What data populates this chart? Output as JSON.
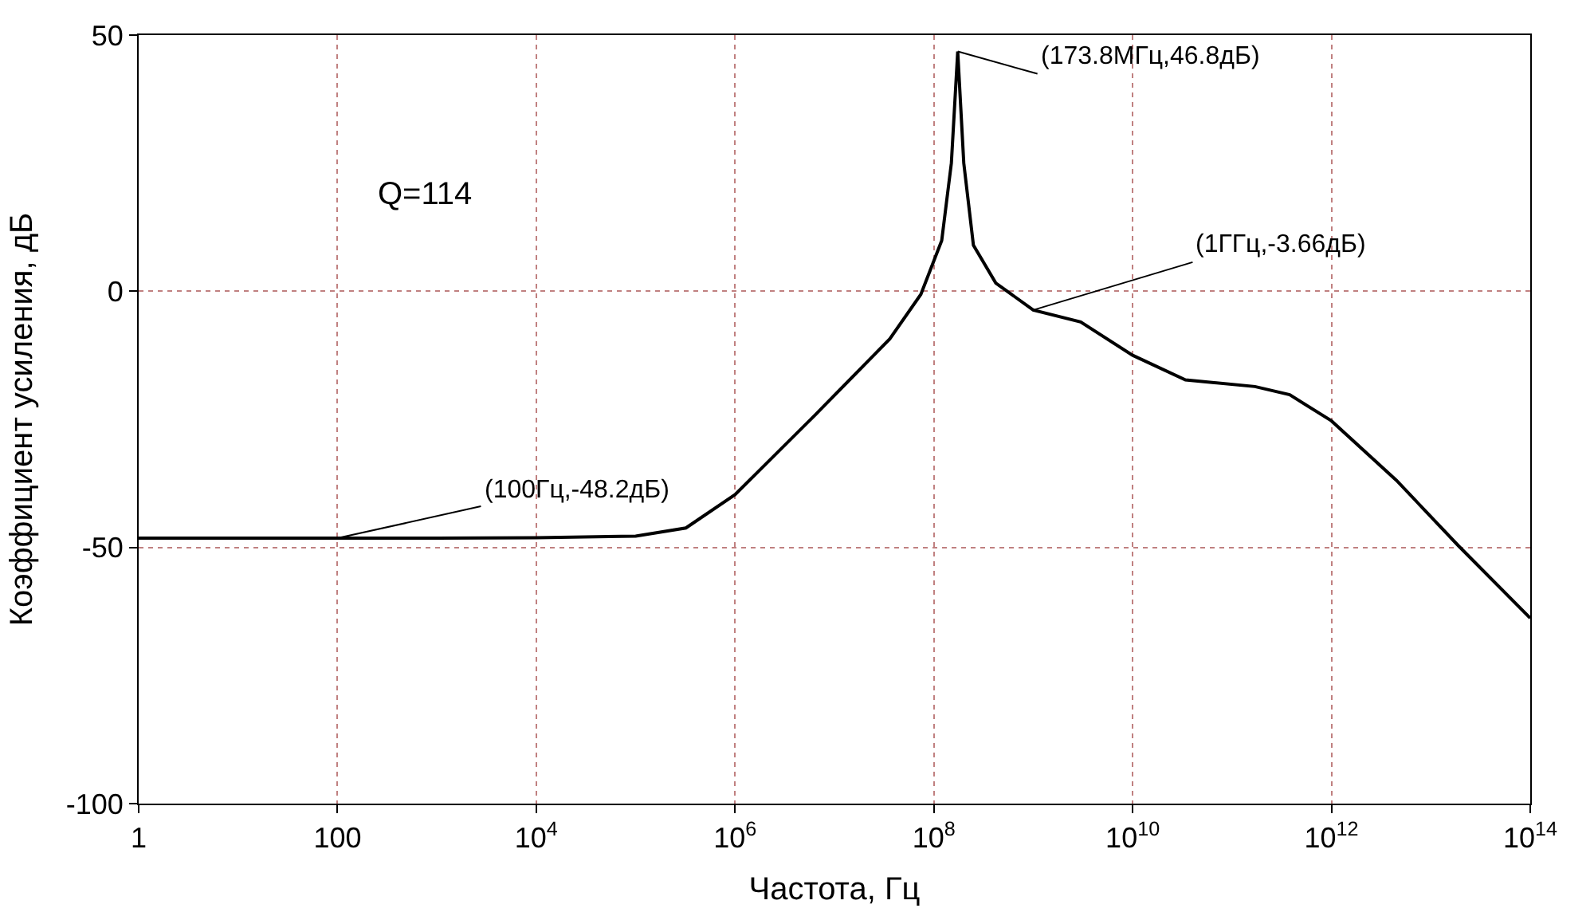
{
  "chart_data": {
    "type": "line",
    "xlabel": "Частота, Гц",
    "ylabel": "Коэффициент усиления, дБ",
    "log": "x",
    "x": [
      1,
      10,
      100,
      1000,
      10000,
      100000,
      320000,
      1000000,
      6500000,
      36000000,
      74000000,
      120000000,
      150000000,
      173800000,
      200000000,
      250000000,
      420000000,
      1000000000,
      3000000000,
      10000000000,
      34000000000,
      170000000000,
      380000000000,
      1000000000000,
      4500000000000,
      19000000000000,
      100000000000000
    ],
    "series": [
      {
        "color": "#000000",
        "values": [
          -48.2,
          -48.2,
          -48.2,
          -48.2,
          -48.1,
          -47.8,
          -46.2,
          -39.7,
          -24,
          -9.3,
          -0.6,
          9.9,
          25,
          46.8,
          25,
          9,
          1.6,
          -3.66,
          -6,
          -12.5,
          -17.3,
          -18.6,
          -20.2,
          -25.3,
          -36.9,
          -49.7,
          -63.8
        ]
      }
    ],
    "xlim": [
      1,
      100000000000000
    ],
    "xticks": [
      {
        "value": 1,
        "label": "1"
      },
      {
        "value": 100,
        "label": "100"
      },
      {
        "value": 10000,
        "label": "10$^{4}$"
      },
      {
        "value": 1000000,
        "label": "10$^{6}$"
      },
      {
        "value": 100000000,
        "label": "10$^{8}$"
      },
      {
        "value": 10000000000,
        "label": "10$^{10}$"
      },
      {
        "value": 1000000000000,
        "label": "10$^{12}$"
      },
      {
        "value": 100000000000000,
        "label": "10$^{14}$"
      }
    ],
    "ylim": [
      -100,
      50
    ],
    "yticks": [
      -100,
      -50,
      0,
      50
    ],
    "grid": true,
    "legend": false,
    "marker": "none",
    "line_style": "solid",
    "annotations": [
      {
        "text": "(173.8МГц,46.8дБ)",
        "x": 173800000,
        "y": 46.8
      },
      {
        "text": "(1ГГц,-3.66дБ)",
        "x": 1000000000,
        "y": -3.66
      },
      {
        "text": "(100Гц,-48.2дБ)",
        "x": 100,
        "y": -48.2
      },
      "Q=114"
    ]
  }
}
